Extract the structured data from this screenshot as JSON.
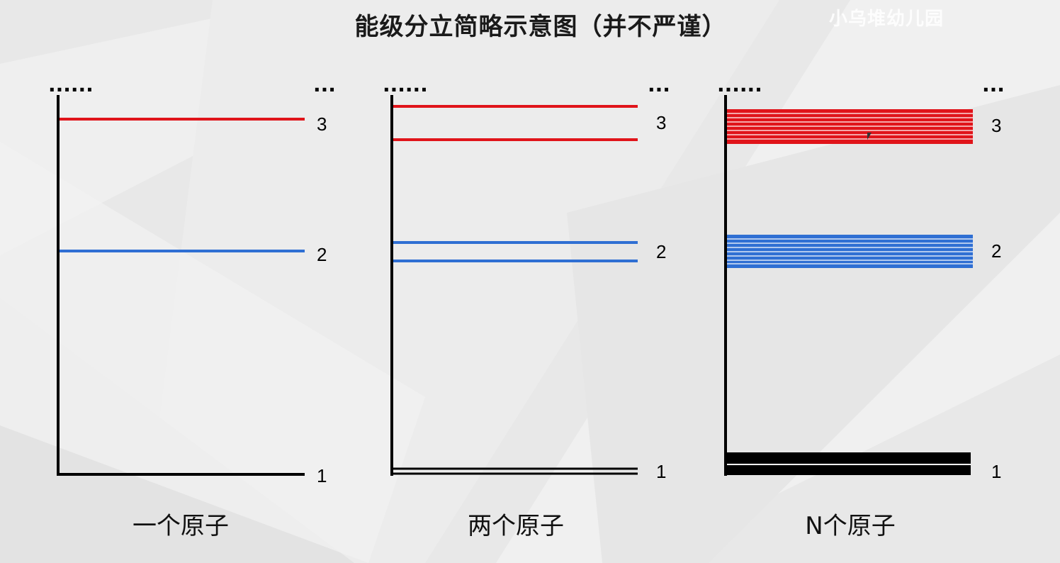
{
  "title": "能级分立简略示意图（并不严谨）",
  "watermark": "小乌堆幼儿园",
  "colors": {
    "level3": "#e0141a",
    "level2": "#2f6fd3",
    "level1": "#000000",
    "axis": "#000000"
  },
  "panels": [
    {
      "caption": "一个原子",
      "dots_left": "......",
      "dots_right": "...",
      "level_labels": [
        "3",
        "2",
        "1"
      ],
      "atom_count": 1
    },
    {
      "caption": "两个原子",
      "dots_left": "......",
      "dots_right": "...",
      "level_labels": [
        "3",
        "2",
        "1"
      ],
      "atom_count": 2
    },
    {
      "caption": "N个原子",
      "dots_left": "......",
      "dots_right": "...",
      "level_labels": [
        "3",
        "2",
        "1"
      ],
      "atom_count": "N"
    }
  ]
}
